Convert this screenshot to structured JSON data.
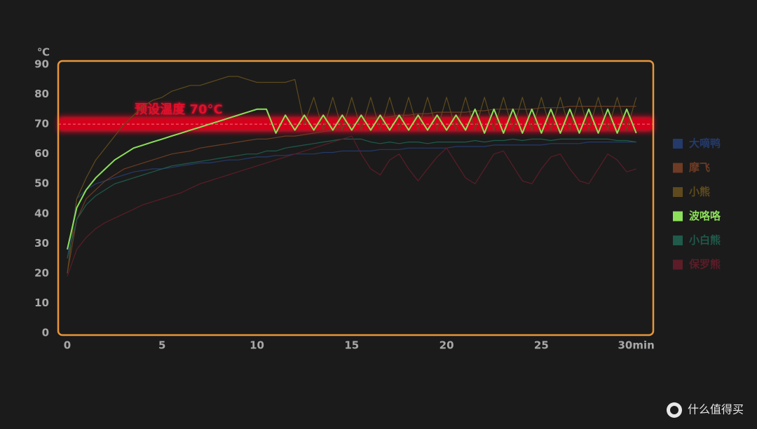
{
  "chart_data": {
    "type": "line",
    "y_unit": "℃",
    "threshold": 70,
    "threshold_label": "预设温度 70°C",
    "watermark": "什么值得买",
    "xlim": [
      -0.48,
      30.9
    ],
    "xticks": [
      0,
      5,
      10,
      15,
      20,
      25,
      {
        "value": 30,
        "label": "30min"
      }
    ],
    "ylim": [
      0,
      90
    ],
    "yticks": [
      0,
      10,
      20,
      30,
      40,
      50,
      60,
      70,
      80,
      90
    ],
    "x": [
      0,
      0.5,
      1,
      1.5,
      2,
      2.5,
      3,
      3.5,
      4,
      4.5,
      5,
      5.5,
      6,
      6.5,
      7,
      7.5,
      8,
      8.5,
      9,
      9.5,
      10,
      10.5,
      11,
      11.5,
      12,
      12.5,
      13,
      13.5,
      14,
      14.5,
      15,
      15.5,
      16,
      16.5,
      17,
      17.5,
      18,
      18.5,
      19,
      19.5,
      20,
      20.5,
      21,
      21.5,
      22,
      22.5,
      23,
      23.5,
      24,
      24.5,
      25,
      25.5,
      26,
      26.5,
      27,
      27.5,
      28,
      28.5,
      29,
      29.5,
      30
    ],
    "series": [
      {
        "name": "大嘀鸭",
        "color": "#243a6a",
        "values": [
          25,
          45,
          48,
          50,
          51,
          52,
          53,
          54,
          54.5,
          55,
          55,
          55.5,
          56,
          56.5,
          57,
          57,
          57.5,
          58,
          58,
          58.5,
          59,
          59,
          59.5,
          59.5,
          60,
          60,
          60,
          60.5,
          60.5,
          61,
          61,
          61,
          61,
          61.5,
          61.5,
          61.5,
          62,
          62,
          62,
          62,
          62,
          62.5,
          62.5,
          62.5,
          62.5,
          63,
          63,
          63,
          63,
          63,
          63,
          63.5,
          63.5,
          63.5,
          63.5,
          64,
          64,
          64,
          64,
          64,
          64
        ]
      },
      {
        "name": "摩飞",
        "color": "#6e3b24",
        "values": [
          20,
          38,
          45,
          48,
          51,
          53,
          55,
          56,
          57,
          58,
          59,
          60,
          60.5,
          61,
          62,
          62.5,
          63,
          63.5,
          64,
          64.5,
          65,
          65,
          65.5,
          66,
          66,
          66.5,
          67,
          67.5,
          68,
          69,
          70,
          71,
          72,
          72,
          72.5,
          73,
          73,
          73.5,
          73.5,
          74,
          74,
          74,
          74,
          74.5,
          74.5,
          75,
          75,
          75,
          75,
          75,
          75.5,
          75.5,
          75.5,
          76,
          76,
          76,
          76,
          76,
          76,
          76,
          76
        ]
      },
      {
        "name": "小熊",
        "color": "#5e4a1c",
        "values": [
          20,
          45,
          52,
          58,
          62,
          66,
          70,
          73,
          76,
          78,
          79,
          81,
          82,
          83,
          83,
          84,
          85,
          86,
          86,
          85,
          84,
          84,
          84,
          84,
          85,
          70,
          79,
          68,
          79,
          68,
          79,
          68,
          79,
          68,
          79,
          68,
          79,
          68,
          79,
          68,
          79,
          68,
          79,
          68,
          79,
          68,
          79,
          68,
          79,
          68,
          79,
          68,
          79,
          68,
          79,
          68,
          79,
          68,
          79,
          68,
          79
        ]
      },
      {
        "name": "波咯咯",
        "color": "#8de05a",
        "values": [
          28,
          42,
          48,
          52,
          55,
          58,
          60,
          62,
          63,
          64,
          65,
          66,
          67,
          68,
          69,
          70,
          71,
          72,
          73,
          74,
          75,
          75,
          67,
          73,
          68,
          73,
          68,
          73,
          68,
          73,
          68,
          73,
          68,
          73,
          68,
          73,
          68,
          73,
          68,
          73,
          68,
          73,
          68,
          75,
          67,
          75,
          67,
          75,
          67,
          75,
          67,
          75,
          67,
          75,
          67,
          75,
          67,
          75,
          67,
          75,
          67
        ]
      },
      {
        "name": "小白熊",
        "color": "#1f5a4a",
        "values": [
          25,
          38,
          43,
          46,
          48,
          50,
          51,
          52,
          53,
          54,
          55,
          56,
          56.5,
          57,
          57.5,
          58,
          58.5,
          59,
          59.5,
          60,
          60,
          61,
          61,
          62,
          62.5,
          63,
          63.5,
          64,
          64.5,
          65,
          65,
          65,
          64,
          63.5,
          64,
          63.5,
          64,
          64,
          63.5,
          64,
          64,
          64,
          64,
          64.5,
          64,
          64.5,
          64.5,
          65,
          64.5,
          65,
          65,
          64.5,
          65,
          65,
          65,
          65,
          65,
          65,
          64.5,
          64.5,
          64
        ]
      },
      {
        "name": "保罗熊",
        "color": "#5c1c28",
        "values": [
          19,
          28,
          32,
          35,
          37,
          38.5,
          40,
          41.5,
          43,
          44,
          45,
          46,
          47,
          48.5,
          50,
          51,
          52,
          53,
          54,
          55,
          56,
          57,
          58,
          59,
          60,
          61,
          62,
          63,
          64,
          65,
          66,
          60,
          55,
          53,
          58,
          60,
          55,
          51,
          55,
          59,
          62,
          57,
          52,
          50,
          55,
          60,
          61,
          56,
          51,
          50,
          55,
          59,
          60,
          55,
          51,
          50,
          55,
          60,
          58,
          54,
          55
        ]
      }
    ]
  }
}
